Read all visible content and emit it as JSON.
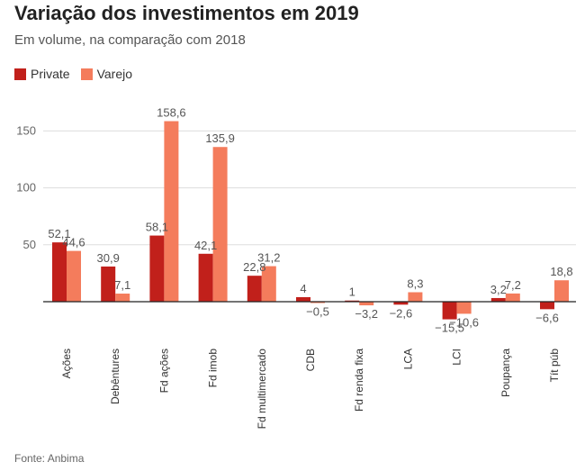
{
  "chart_data": {
    "type": "bar",
    "title": "Variação dos investimentos em 2019",
    "subtitle": "Em volume, na comparação com 2018",
    "source": "Fonte: Anbima",
    "categories": [
      "Ações",
      "Debêntures",
      "Fd ações",
      "Fd imob",
      "Fd multimercado",
      "CDB",
      "Fd renda fixa",
      "LCA",
      "LCI",
      "Poupança",
      "Tít púb"
    ],
    "series": [
      {
        "name": "Private",
        "color": "#c1201b",
        "values": [
          52.1,
          30.9,
          58.1,
          42.1,
          22.8,
          4,
          1,
          -2.6,
          -15.5,
          3.2,
          -6.6
        ],
        "labels": [
          "52,1",
          "30,9",
          "58,1",
          "42,1",
          "22,8",
          "4",
          "1",
          "−2,6",
          "−15,5",
          "3,2",
          "−6,6"
        ]
      },
      {
        "name": "Varejo",
        "color": "#f47c5c",
        "values": [
          44.6,
          7.1,
          158.6,
          135.9,
          31.2,
          -0.5,
          -3.2,
          8.3,
          -10.6,
          7.2,
          18.8
        ],
        "labels": [
          "44,6",
          "7,1",
          "158,6",
          "135,9",
          "31,2",
          "−0,5",
          "−3,2",
          "8,3",
          "−10,6",
          "7,2",
          "18,8"
        ]
      }
    ],
    "yticks": [
      50,
      100,
      150
    ],
    "ytick_labels": [
      "50",
      "100",
      "150"
    ],
    "ylim": [
      -20,
      170
    ],
    "grid": true,
    "legend": "top-left"
  }
}
